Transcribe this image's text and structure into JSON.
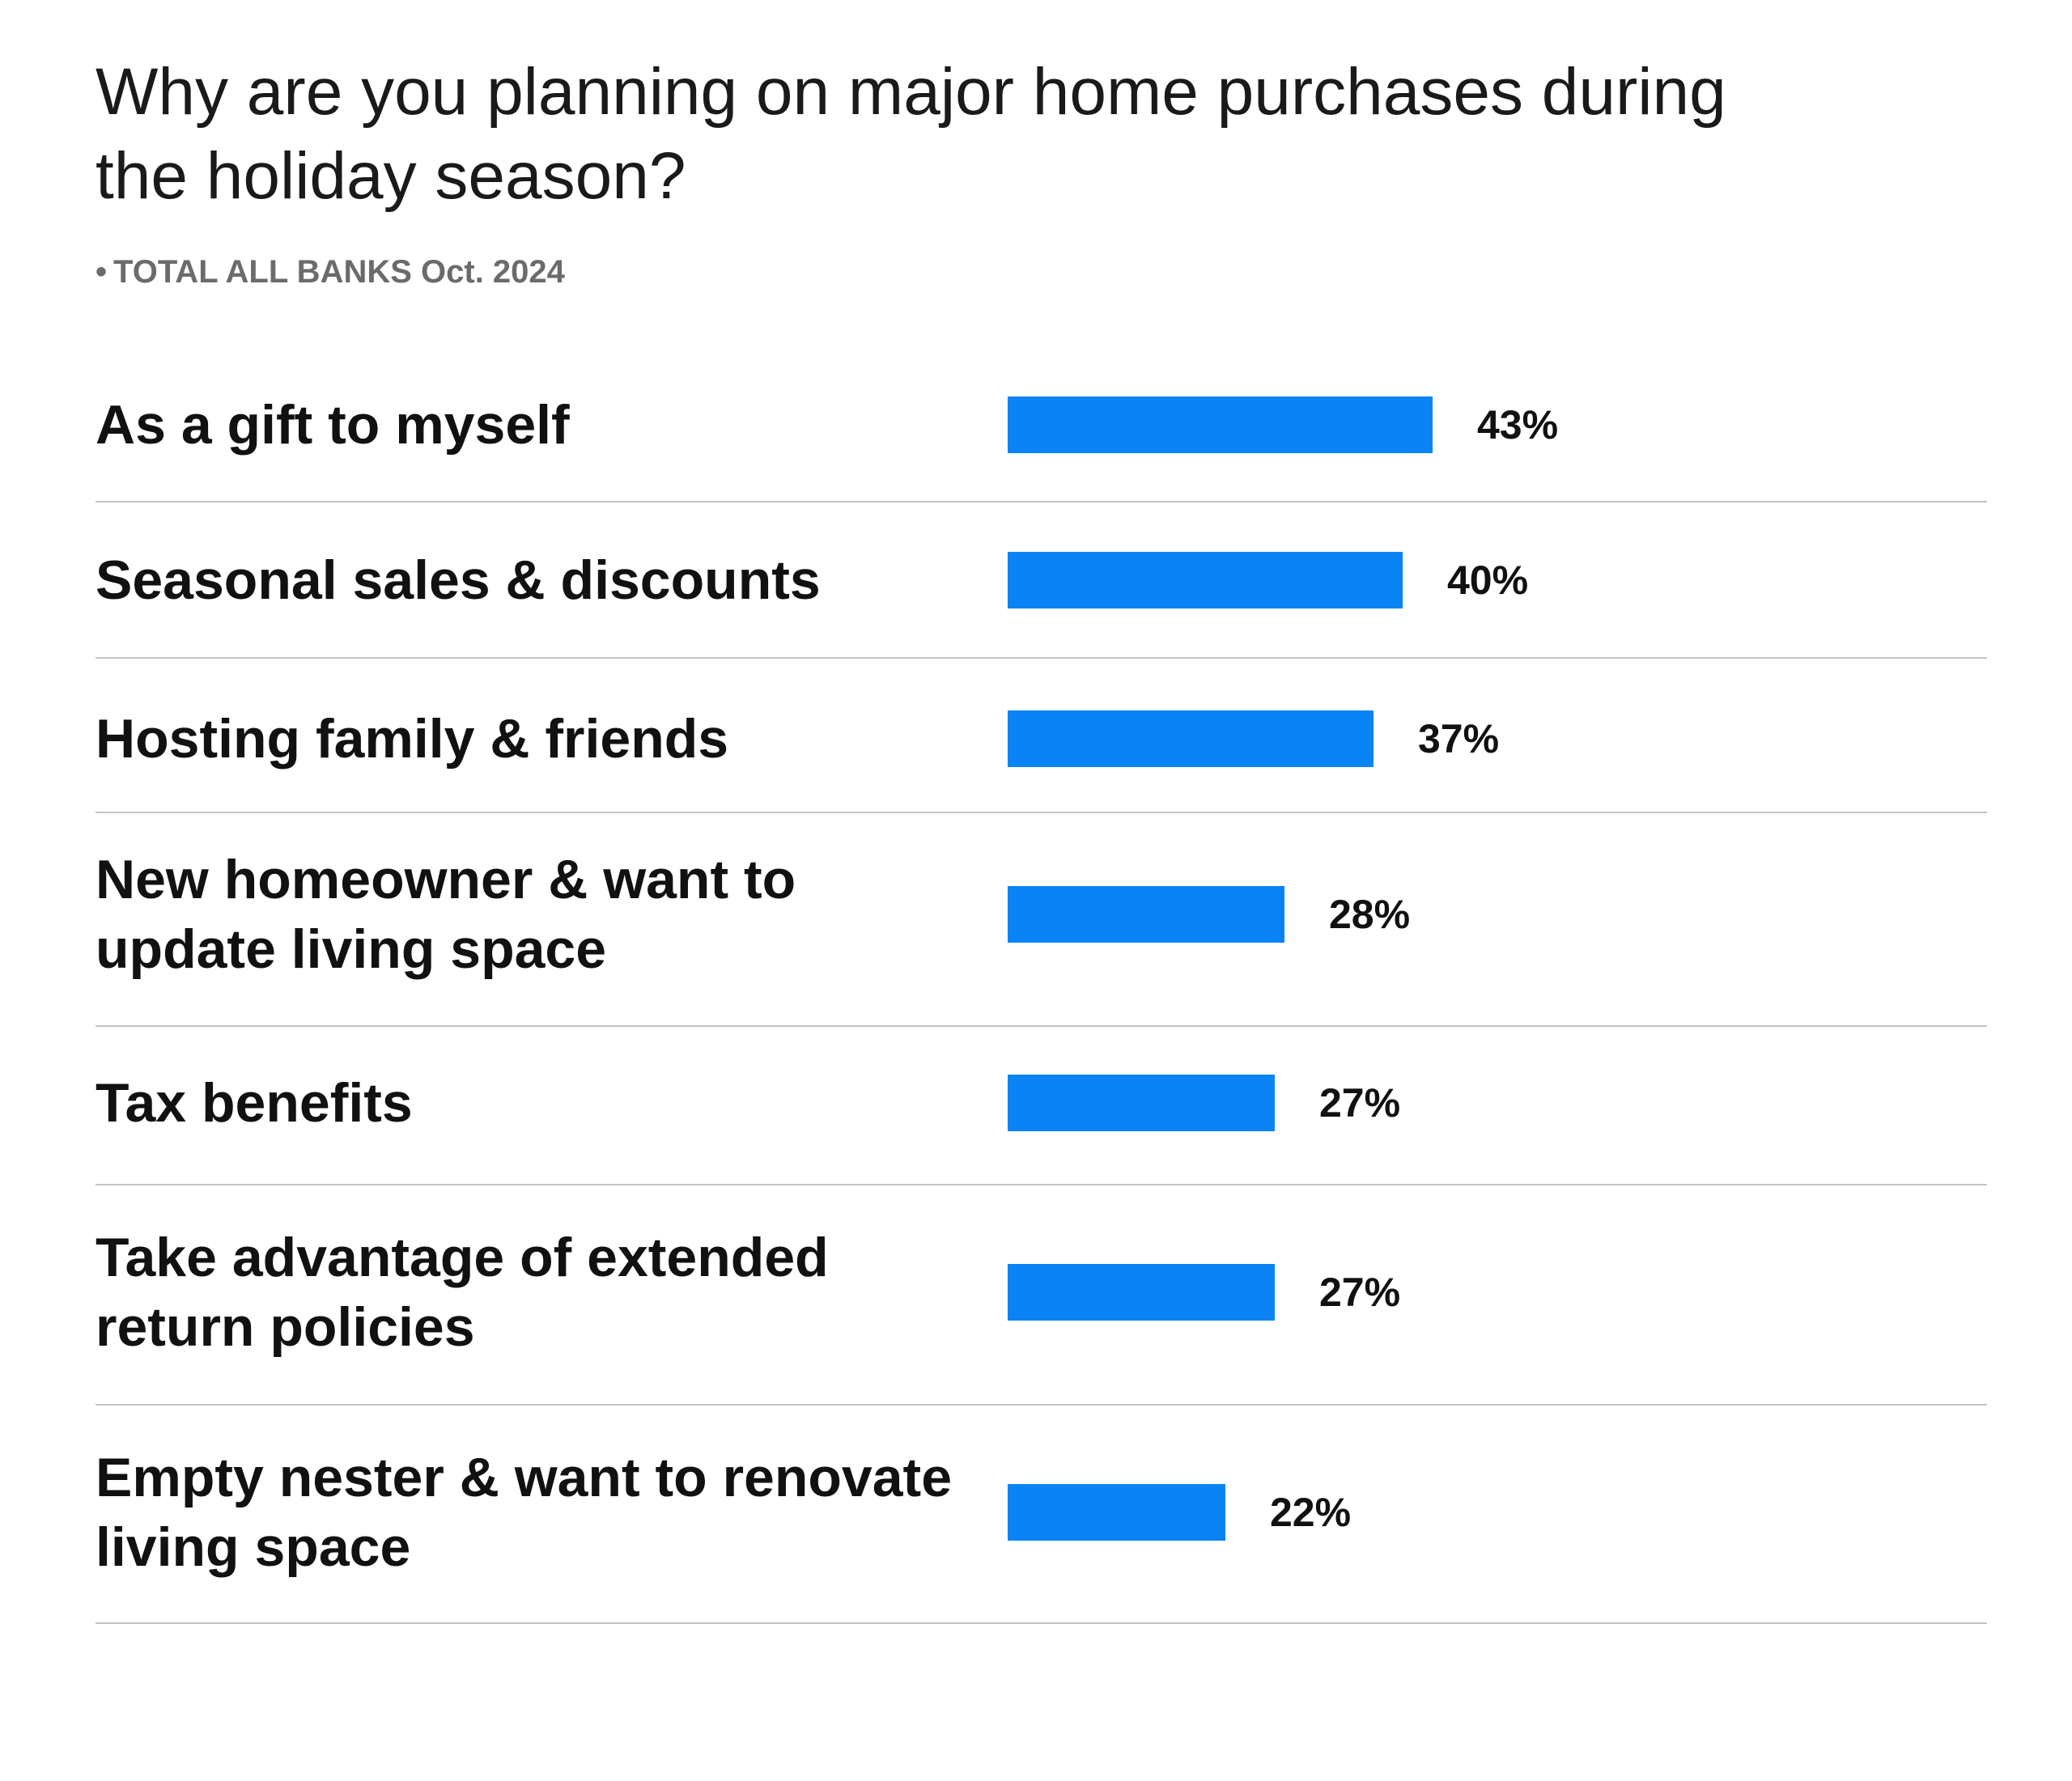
{
  "chart_data": {
    "type": "bar",
    "orientation": "horizontal",
    "title": "Why are you planning on major home purchases during the holiday season?",
    "subtitle": "TOTAL ALL BANKS Oct. 2024",
    "categories": [
      "As a gift to myself",
      "Seasonal sales & discounts",
      "Hosting family & friends",
      "New homeowner & want to update living space",
      "Tax benefits",
      "Take advantage of extended return policies",
      "Empty nester & want to renovate living space"
    ],
    "values": [
      43,
      40,
      37,
      28,
      27,
      27,
      22
    ],
    "value_labels": [
      "43%",
      "40%",
      "37%",
      "28%",
      "27%",
      "27%",
      "22%"
    ],
    "unit": "%",
    "bar_color": "#0a84f5",
    "grid": false
  }
}
